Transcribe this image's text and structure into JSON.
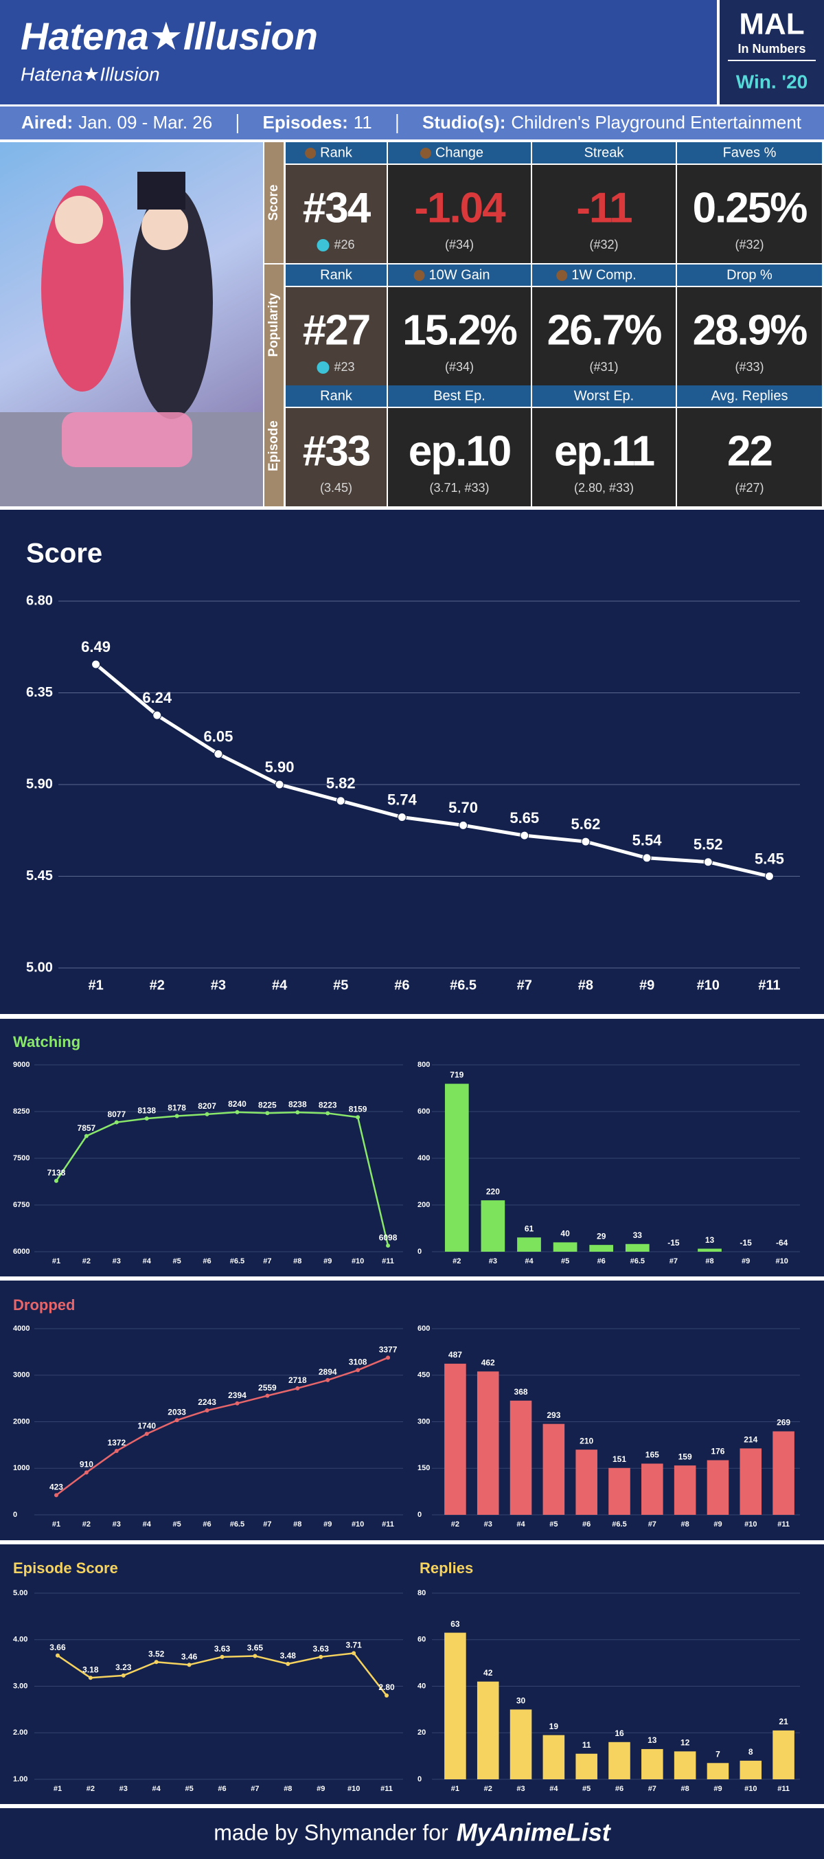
{
  "header": {
    "title": "Hatena★Illusion",
    "subtitle": "Hatena★Illusion",
    "badge": {
      "name": "MAL",
      "tagline": "In Numbers",
      "season": "Win. '20"
    }
  },
  "info": [
    {
      "label": "Aired:",
      "value": "Jan. 09 - Mar. 26"
    },
    {
      "label": "Episodes:",
      "value": "11"
    },
    {
      "label": "Studio(s):",
      "value": "Children's Playground Entertainment"
    }
  ],
  "stats": {
    "groups": [
      {
        "name": "Score",
        "cells": [
          {
            "header": "Rank",
            "value": "#34",
            "sub": "#26"
          },
          {
            "header": "Change",
            "value": "-1.04",
            "sub": "(#34)",
            "color": "#d9393b"
          },
          {
            "header": "Streak",
            "value": "-11",
            "sub": "(#32)",
            "color": "#d9393b"
          },
          {
            "header": "Faves %",
            "value": "0.25%",
            "sub": "(#32)"
          }
        ]
      },
      {
        "name": "Popularity",
        "cells": [
          {
            "header": "Rank",
            "value": "#27",
            "sub": "#23"
          },
          {
            "header": "10W Gain",
            "value": "15.2%",
            "sub": "(#34)"
          },
          {
            "header": "1W Comp.",
            "value": "26.7%",
            "sub": "(#31)"
          },
          {
            "header": "Drop %",
            "value": "28.9%",
            "sub": "(#33)"
          }
        ]
      },
      {
        "name": "Episode",
        "cells": [
          {
            "header": "Rank",
            "value": "#33",
            "sub": "(3.45)"
          },
          {
            "header": "Best Ep.",
            "value": "ep.10",
            "sub": "(3.71, #33)"
          },
          {
            "header": "Worst Ep.",
            "value": "ep.11",
            "sub": "(2.80, #33)"
          },
          {
            "header": "Avg. Replies",
            "value": "22",
            "sub": "(#27)"
          }
        ]
      }
    ]
  },
  "chart_data": [
    {
      "type": "line",
      "title": "Score",
      "color": "#ffffff",
      "grid": true,
      "categories": [
        "#1",
        "#2",
        "#3",
        "#4",
        "#5",
        "#6",
        "#6.5",
        "#7",
        "#8",
        "#9",
        "#10",
        "#11"
      ],
      "values": [
        6.49,
        6.24,
        6.05,
        5.9,
        5.82,
        5.74,
        5.7,
        5.65,
        5.62,
        5.54,
        5.52,
        5.45
      ],
      "value_labels": [
        "6.49",
        "6.24",
        "6.05",
        "5.90",
        "5.82",
        "5.74",
        "5.70",
        "5.65",
        "5.62",
        "5.54",
        "5.52",
        "5.45"
      ],
      "ylim": [
        5.0,
        6.8
      ],
      "yticks": [
        {
          "value": 5.0,
          "label": "5.00"
        },
        5.45,
        {
          "value": 5.9,
          "label": "5.90"
        },
        6.35,
        {
          "value": 6.8,
          "label": "6.80"
        }
      ]
    },
    {
      "type": "line",
      "title": "Watching",
      "color": "#8ae86a",
      "grid": true,
      "categories": [
        "#1",
        "#2",
        "#3",
        "#4",
        "#5",
        "#6",
        "#6.5",
        "#7",
        "#8",
        "#9",
        "#10",
        "#11"
      ],
      "values": [
        7138,
        7857,
        8077,
        8138,
        8178,
        8207,
        8240,
        8225,
        8238,
        8223,
        8159,
        6098
      ],
      "ylim": [
        6000,
        9000
      ],
      "yticks": [
        6000,
        6750,
        7500,
        8250,
        9000
      ]
    },
    {
      "type": "bar",
      "color": "#7ee35c",
      "grid": true,
      "categories": [
        "#2",
        "#3",
        "#4",
        "#5",
        "#6",
        "#6.5",
        "#7",
        "#8",
        "#9",
        "#10"
      ],
      "values": [
        719,
        220,
        61,
        40,
        29,
        33,
        -15,
        13,
        -15,
        -64
      ],
      "ylim": [
        0,
        800
      ],
      "yticks": [
        0,
        200,
        400,
        600,
        800
      ]
    },
    {
      "type": "line",
      "title": "Dropped",
      "color": "#e8666a",
      "grid": true,
      "categories": [
        "#1",
        "#2",
        "#3",
        "#4",
        "#5",
        "#6",
        "#6.5",
        "#7",
        "#8",
        "#9",
        "#10",
        "#11"
      ],
      "values": [
        423,
        910,
        1372,
        1740,
        2033,
        2243,
        2394,
        2559,
        2718,
        2894,
        3108,
        3377
      ],
      "ylim": [
        0,
        4000
      ],
      "yticks": [
        0,
        1000,
        2000,
        3000,
        4000
      ]
    },
    {
      "type": "bar",
      "color": "#e8666a",
      "grid": true,
      "categories": [
        "#2",
        "#3",
        "#4",
        "#5",
        "#6",
        "#6.5",
        "#7",
        "#8",
        "#9",
        "#10",
        "#11"
      ],
      "values": [
        487,
        462,
        368,
        293,
        210,
        151,
        165,
        159,
        176,
        214,
        269
      ],
      "ylim": [
        0,
        600
      ],
      "yticks": [
        0,
        150,
        300,
        450,
        600
      ]
    },
    {
      "type": "line",
      "title": "Episode Score",
      "color": "#f6d35e",
      "grid": true,
      "categories": [
        "#1",
        "#2",
        "#3",
        "#4",
        "#5",
        "#6",
        "#7",
        "#8",
        "#9",
        "#10",
        "#11"
      ],
      "values": [
        3.66,
        3.18,
        3.23,
        3.52,
        3.46,
        3.63,
        3.65,
        3.48,
        3.63,
        3.71,
        2.8
      ],
      "value_labels": [
        "3.66",
        "3.18",
        "3.23",
        "3.52",
        "3.46",
        "3.63",
        "3.65",
        "3.48",
        "3.63",
        "3.71",
        "2.80"
      ],
      "ylim": [
        1,
        5
      ],
      "yticks": [
        {
          "value": 1,
          "label": "1.00"
        },
        {
          "value": 2,
          "label": "2.00"
        },
        {
          "value": 3,
          "label": "3.00"
        },
        {
          "value": 4,
          "label": "4.00"
        },
        {
          "value": 5,
          "label": "5.00"
        }
      ]
    },
    {
      "type": "bar",
      "title": "Replies",
      "color": "#f6d35e",
      "grid": true,
      "categories": [
        "#1",
        "#2",
        "#3",
        "#4",
        "#5",
        "#6",
        "#7",
        "#8",
        "#9",
        "#10",
        "#11"
      ],
      "values": [
        63,
        42,
        30,
        19,
        11,
        16,
        13,
        12,
        7,
        8,
        21
      ],
      "ylim": [
        0,
        80
      ],
      "yticks": [
        0,
        20,
        40,
        60,
        80
      ]
    }
  ],
  "footer": {
    "text": "made by Shymander for",
    "brand": "MyAnimeList"
  }
}
